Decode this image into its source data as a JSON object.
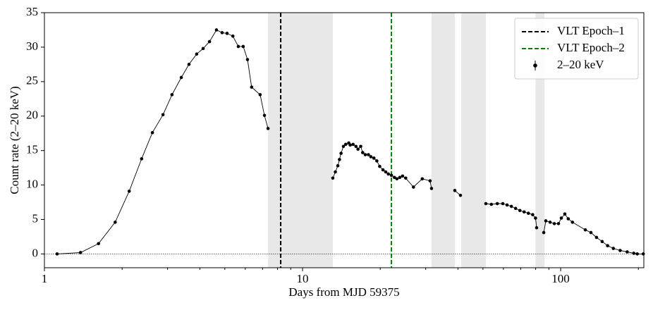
{
  "chart_data": {
    "type": "line",
    "xlabel": "Days from MJD 59375",
    "ylabel": "Count rate (2–20 keV)",
    "xscale": "log",
    "xlim": [
      1,
      210
    ],
    "ylim": [
      -2,
      35
    ],
    "xticks": [
      1,
      10,
      100
    ],
    "xminor_ticks": [
      2,
      3,
      4,
      5,
      6,
      7,
      8,
      9,
      20,
      30,
      40,
      50,
      60,
      70,
      80,
      90,
      200
    ],
    "yticks": [
      0,
      5,
      10,
      15,
      20,
      25,
      30,
      35
    ],
    "hline": {
      "y": 0,
      "color": "#000000"
    },
    "shaded": [
      [
        7.35,
        13.1
      ],
      [
        31.6,
        38.9
      ],
      [
        41.2,
        51.3
      ],
      [
        79.9,
        86.6
      ]
    ],
    "shade_color": "#e8e8e8",
    "vlines": [
      {
        "name": "VLT Epoch–1",
        "x": 8.23,
        "color": "#000000"
      },
      {
        "name": "VLT Epoch–2",
        "x": 22.1,
        "color": "#008000"
      }
    ],
    "legend": "upper right",
    "series": [
      {
        "name": "2–20 keV",
        "color": "#000000",
        "x": [
          1.12,
          1.38,
          1.62,
          1.88,
          2.13,
          2.38,
          2.62,
          2.88,
          3.12,
          3.39,
          3.63,
          3.89,
          4.12,
          4.36,
          4.64,
          4.88,
          5.1,
          5.37,
          5.64,
          5.89,
          6.12,
          6.35,
          6.85,
          7.12,
          7.35,
          null,
          13.1,
          13.4,
          13.7,
          13.9,
          14.1,
          14.4,
          14.7,
          15.1,
          15.3,
          15.7,
          16.1,
          16.4,
          16.8,
          17.1,
          17.5,
          18.0,
          18.4,
          18.9,
          19.4,
          19.9,
          20.5,
          21.0,
          21.5,
          22.1,
          22.7,
          23.2,
          23.8,
          24.4,
          25.1,
          26.9,
          29.1,
          31.2,
          31.6,
          null,
          38.9,
          40.9,
          null,
          51.3,
          53.9,
          56.8,
          59.7,
          62.0,
          64.4,
          66.9,
          69.5,
          72.2,
          75.0,
          77.9,
          79.9,
          80.7,
          null,
          86.0,
          87.6,
          91.0,
          94.5,
          98.1,
          100.6,
          103.8,
          107.0,
          111.1,
          124.6,
          131,
          137.7,
          144.8,
          152,
          160,
          170,
          181,
          192,
          198,
          209
        ],
        "values": [
          0,
          0.2,
          1.5,
          4.6,
          9.1,
          13.8,
          17.6,
          20.2,
          23.1,
          25.6,
          27.5,
          29.0,
          29.8,
          30.8,
          32.5,
          32.1,
          32.0,
          31.6,
          30.1,
          30.1,
          28.2,
          24.2,
          23.1,
          20.1,
          18.2,
          null,
          11.0,
          11.9,
          12.8,
          13.7,
          14.6,
          15.6,
          15.9,
          16.1,
          15.8,
          15.9,
          15.6,
          15.2,
          15.6,
          14.7,
          14.4,
          14.4,
          14.1,
          13.9,
          13.5,
          12.7,
          12.2,
          11.9,
          11.6,
          11.4,
          11.1,
          10.9,
          11.1,
          11.3,
          11.0,
          9.7,
          10.9,
          10.6,
          9.5,
          null,
          9.2,
          8.5,
          null,
          7.3,
          7.2,
          7.3,
          7.3,
          7.1,
          6.9,
          6.6,
          6.3,
          6.1,
          5.9,
          5.7,
          5.2,
          3.8,
          null,
          3.1,
          4.8,
          4.6,
          4.4,
          4.4,
          5.2,
          5.8,
          5.1,
          4.6,
          3.5,
          3.1,
          2.4,
          1.8,
          1.2,
          0.8,
          0.5,
          0.3,
          0.1,
          0,
          0
        ]
      }
    ]
  }
}
